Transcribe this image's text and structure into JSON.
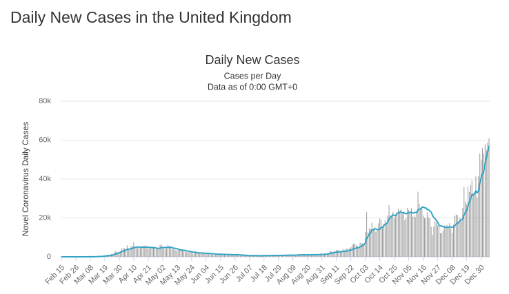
{
  "page_title": "Daily New Cases in the United Kingdom",
  "chart_data": {
    "type": "bar-line",
    "title": "Daily New Cases",
    "subtitle": [
      "Cases per Day",
      "Data as of 0:00 GMT+0"
    ],
    "y_label": "Novel Coronavirus Daily Cases",
    "ylim": [
      0,
      80000
    ],
    "yticks": [
      0,
      {
        "value": 20000,
        "label": "20k"
      },
      {
        "value": 40000,
        "label": "40k"
      },
      {
        "value": 60000,
        "label": "60k"
      },
      {
        "value": 80000,
        "label": "80k"
      }
    ],
    "grid": true,
    "categories": [
      "Feb 15",
      null,
      null,
      null,
      null,
      null,
      null,
      null,
      null,
      null,
      null,
      "Feb 26",
      null,
      null,
      null,
      null,
      null,
      null,
      null,
      null,
      null,
      null,
      "Mar 08",
      null,
      null,
      null,
      null,
      null,
      null,
      null,
      null,
      null,
      null,
      "Mar 19",
      null,
      null,
      null,
      null,
      null,
      null,
      null,
      null,
      null,
      null,
      "Mar 30",
      null,
      null,
      null,
      null,
      null,
      null,
      null,
      null,
      null,
      null,
      "Apr 10",
      null,
      null,
      null,
      null,
      null,
      null,
      null,
      null,
      null,
      null,
      "Apr 21",
      null,
      null,
      null,
      null,
      null,
      null,
      null,
      null,
      null,
      null,
      "May 02",
      null,
      null,
      null,
      null,
      null,
      null,
      null,
      null,
      null,
      null,
      "May 13",
      null,
      null,
      null,
      null,
      null,
      null,
      null,
      null,
      null,
      null,
      "May 24",
      null,
      null,
      null,
      null,
      null,
      null,
      null,
      null,
      null,
      null,
      "Jun 04",
      null,
      null,
      null,
      null,
      null,
      null,
      null,
      null,
      null,
      null,
      "Jun 15",
      null,
      null,
      null,
      null,
      null,
      null,
      null,
      null,
      null,
      null,
      "Jun 26",
      null,
      null,
      null,
      null,
      null,
      null,
      null,
      null,
      null,
      null,
      "Jul 07",
      null,
      null,
      null,
      null,
      null,
      null,
      null,
      null,
      null,
      null,
      "Jul 18",
      null,
      null,
      null,
      null,
      null,
      null,
      null,
      null,
      null,
      null,
      "Jul 29",
      null,
      null,
      null,
      null,
      null,
      null,
      null,
      null,
      null,
      null,
      "Aug 09",
      null,
      null,
      null,
      null,
      null,
      null,
      null,
      null,
      null,
      null,
      "Aug 20",
      null,
      null,
      null,
      null,
      null,
      null,
      null,
      null,
      null,
      null,
      "Aug 31",
      null,
      null,
      null,
      null,
      null,
      null,
      null,
      null,
      null,
      null,
      "Sep 11",
      null,
      null,
      null,
      null,
      null,
      null,
      null,
      null,
      null,
      null,
      "Sep 22",
      null,
      null,
      null,
      null,
      null,
      null,
      null,
      null,
      null,
      null,
      "Oct 03",
      null,
      null,
      null,
      null,
      null,
      null,
      null,
      null,
      null,
      null,
      "Oct 14",
      null,
      null,
      null,
      null,
      null,
      null,
      null,
      null,
      null,
      null,
      "Oct 25",
      null,
      null,
      null,
      null,
      null,
      null,
      null,
      null,
      null,
      null,
      "Nov 05",
      null,
      null,
      null,
      null,
      null,
      null,
      null,
      null,
      null,
      null,
      "Nov 16",
      null,
      null,
      null,
      null,
      null,
      null,
      null,
      null,
      null,
      null,
      "Nov 27",
      null,
      null,
      null,
      null,
      null,
      null,
      null,
      null,
      null,
      null,
      "Dec 08",
      null,
      null,
      null,
      null,
      null,
      null,
      null,
      null,
      null,
      null,
      "Dec 19",
      null,
      null,
      null,
      null,
      null,
      null,
      null,
      null,
      null,
      null,
      "Dec 30",
      null,
      null,
      null,
      null,
      null,
      null
    ],
    "series": [
      {
        "type": "bar",
        "color": "#999999",
        "values": [
          0,
          0,
          0,
          0,
          0,
          0,
          0,
          0,
          0,
          4,
          0,
          0,
          0,
          3,
          4,
          12,
          4,
          11,
          34,
          29,
          48,
          45,
          69,
          43,
          62,
          77,
          130,
          208,
          342,
          251,
          152,
          407,
          676,
          643,
          714,
          1035,
          665,
          967,
          1427,
          1452,
          2129,
          2885,
          2546,
          2433,
          2619,
          3009,
          4324,
          4244,
          4450,
          3735,
          5903,
          3802,
          3634,
          5491,
          5500,
          7500,
          5233,
          5288,
          4342,
          5252,
          4603,
          4617,
          5599,
          5525,
          5850,
          4676,
          4301,
          4451,
          4583,
          5386,
          4913,
          4463,
          4309,
          3996,
          4076,
          6032,
          6201,
          4806,
          4339,
          3985,
          4406,
          6111,
          5614,
          4649,
          3896,
          3923,
          3877,
          3403,
          3242,
          3446,
          3560,
          3450,
          3534,
          2684,
          3142,
          2472,
          2412,
          2615,
          2959,
          2405,
          1625,
          2004,
          2013,
          2095,
          1887,
          1939,
          1936,
          1570,
          1653,
          1871,
          1805,
          1650,
          1557,
          1326,
          1205,
          1741,
          1003,
          1266,
          1541,
          1425,
          1514,
          1056,
          1279,
          1115,
          1218,
          1346,
          1295,
          1221,
          958,
          874,
          653,
          1118,
          1380,
          1006,
          901,
          815,
          689,
          829,
          576,
          544,
          624,
          516,
          352,
          581,
          630,
          612,
          642,
          820,
          650,
          530,
          598,
          538,
          463,
          827,
          763,
          580,
          726,
          445,
          769,
          760,
          768,
          880,
          747,
          685,
          581,
          763,
          846,
          880,
          743,
          744,
          938,
          670,
          950,
          891,
          871,
          758,
          1062,
          816,
          1148,
          1009,
          1441,
          1012,
          1077,
          1040,
          713,
          1089,
          812,
          1182,
          1033,
          1288,
          1041,
          1276,
          853,
          1184,
          1048,
          1276,
          1108,
          1715,
          1406,
          1295,
          1508,
          1735,
          1813,
          1940,
          2988,
          2948,
          2460,
          2659,
          2919,
          3539,
          3497,
          3330,
          2621,
          3105,
          3991,
          3395,
          3929,
          4322,
          3899,
          4368,
          4926,
          6178,
          6634,
          6874,
          6042,
          5693,
          4044,
          7143,
          7108,
          6914,
          6968,
          12872,
          22961,
          12594,
          14542,
          14162,
          17540,
          13864,
          15166,
          12872,
          13972,
          17234,
          19724,
          18980,
          15650,
          16982,
          18804,
          16982,
          21331,
          26688,
          21242,
          20530,
          23012,
          19790,
          20890,
          22885,
          24701,
          23065,
          24405,
          21915,
          23254,
          18950,
          20018,
          25177,
          24141,
          23287,
          24957,
          20572,
          21350,
          20412,
          22950,
          33470,
          27301,
          24962,
          24962,
          21363,
          20051,
          19609,
          22915,
          20252,
          19875,
          15450,
          11299,
          15450,
          18213,
          17555,
          16022,
          15871,
          12155,
          12330,
          13430,
          16170,
          14879,
          16298,
          15539,
          17272,
          14718,
          12282,
          16578,
          20964,
          21672,
          21502,
          18447,
          20263,
          18450,
          25161,
          35928,
          28507,
          27052,
          35928,
          33364,
          36804,
          39237,
          32725,
          32725,
          41385,
          30501,
          41385,
          53135,
          50023,
          55892,
          53285,
          57725,
          54990,
          58784,
          60916
        ]
      },
      {
        "type": "line",
        "color": "#33a3c4",
        "values": [
          0,
          0,
          0,
          0,
          0,
          0,
          0,
          0,
          0,
          1,
          1,
          1,
          1,
          1,
          2,
          3,
          4,
          5,
          10,
          13,
          20,
          26,
          34,
          38,
          42,
          50,
          66,
          90,
          130,
          160,
          170,
          220,
          300,
          380,
          460,
          540,
          620,
          670,
          790,
          900,
          1060,
          1350,
          1600,
          1800,
          2100,
          2300,
          2700,
          2900,
          3200,
          3400,
          3800,
          3900,
          4000,
          4200,
          4200,
          4700,
          4800,
          4950,
          5050,
          5100,
          4900,
          4900,
          4950,
          5000,
          5050,
          4950,
          4900,
          4900,
          4800,
          4800,
          4700,
          4700,
          4500,
          4400,
          4350,
          4500,
          4700,
          4780,
          4780,
          4780,
          4850,
          4850,
          4850,
          4900,
          4750,
          4450,
          4470,
          4250,
          4130,
          3930,
          3600,
          3500,
          3500,
          3300,
          3300,
          3130,
          2980,
          2850,
          2730,
          2690,
          2450,
          2400,
          2330,
          2230,
          2030,
          2000,
          1990,
          1940,
          1890,
          1860,
          1830,
          1800,
          1770,
          1680,
          1630,
          1640,
          1530,
          1460,
          1430,
          1350,
          1330,
          1330,
          1310,
          1250,
          1230,
          1220,
          1190,
          1210,
          1170,
          1140,
          1080,
          1060,
          1080,
          1050,
          1040,
          1000,
          990,
          950,
          880,
          830,
          800,
          760,
          680,
          640,
          610,
          620,
          610,
          610,
          620,
          600,
          590,
          580,
          540,
          590,
          600,
          610,
          630,
          600,
          640,
          650,
          650,
          670,
          680,
          690,
          680,
          710,
          730,
          770,
          770,
          770,
          790,
          780,
          800,
          820,
          840,
          840,
          860,
          840,
          860,
          880,
          940,
          990,
          1010,
          1040,
          1020,
          1040,
          1020,
          1040,
          1020,
          1070,
          1050,
          1090,
          1060,
          1080,
          1100,
          1120,
          1120,
          1190,
          1210,
          1240,
          1290,
          1330,
          1410,
          1510,
          1690,
          1820,
          1990,
          2130,
          2290,
          2380,
          2460,
          2580,
          2580,
          2640,
          2790,
          2770,
          2830,
          2960,
          3120,
          3300,
          3440,
          3700,
          4010,
          4280,
          4440,
          4630,
          4630,
          5080,
          5390,
          5980,
          6180,
          7160,
          9460,
          10400,
          11670,
          12320,
          13840,
          13830,
          14440,
          14270,
          14080,
          13970,
          14200,
          15150,
          15170,
          15980,
          16680,
          17020,
          17950,
          19460,
          20200,
          20900,
          21610,
          21320,
          21240,
          22110,
          22520,
          22960,
          23140,
          22570,
          22820,
          22340,
          22110,
          22560,
          22650,
          22820,
          22930,
          22540,
          22530,
          22800,
          22820,
          24170,
          24440,
          24590,
          25480,
          25660,
          25170,
          25180,
          24300,
          24330,
          23530,
          23080,
          21420,
          20290,
          19630,
          18700,
          17890,
          16240,
          15930,
          15850,
          15500,
          15360,
          15190,
          15230,
          15190,
          15280,
          15500,
          15130,
          15290,
          16000,
          16800,
          17250,
          17730,
          18600,
          18950,
          19450,
          21530,
          22680,
          23820,
          26150,
          28170,
          29830,
          32050,
          31700,
          32530,
          33920,
          32910,
          33780,
          38000,
          40500,
          42500,
          44000,
          48000,
          51000,
          54000,
          57000
        ]
      }
    ]
  }
}
